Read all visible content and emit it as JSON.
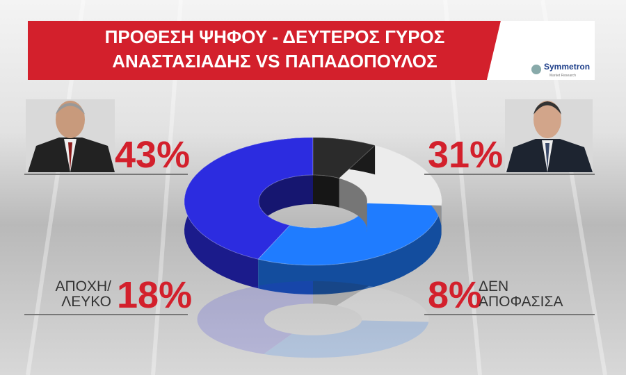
{
  "chart_data": {
    "type": "donut",
    "title": "ΠΡΟΘΕΣΗ ΨΗΦΟΥ - ΔΕΥΤΕΡΟΣ ΓΥΡΟΣ",
    "subtitle": "ΑΝΑΣΤΑΣΙΑΔΗΣ VS ΠΑΠΑΔΟΠΟΥΛΟΣ",
    "source": "Symmetron",
    "source_note": "Market Research",
    "categories": [
      null,
      null,
      "ΑΠΟΧΗ/ ΛΕΥΚΟ",
      "ΔΕΝ ΑΠΟΦΑΣΙΣΑ"
    ],
    "values": [
      43,
      31,
      18,
      8
    ],
    "value_labels": [
      "43%",
      "31%",
      "18%",
      "8%"
    ],
    "colors": [
      "#2c2ce0",
      "#1f7cff",
      "#ececec",
      "#2b2b2b"
    ]
  }
}
